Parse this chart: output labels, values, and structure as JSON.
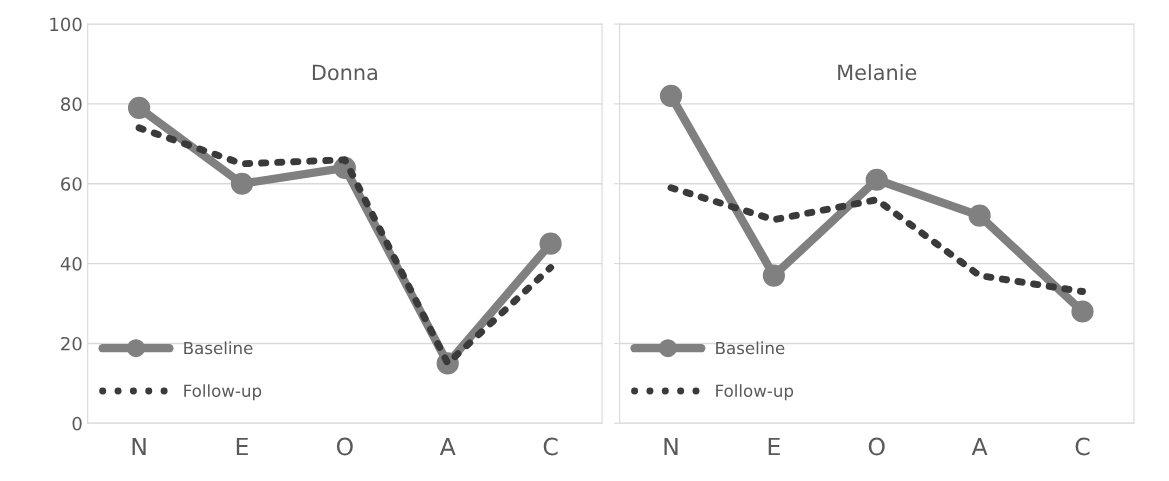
{
  "chart_data": [
    {
      "type": "line",
      "title": "Donna",
      "categories": [
        "N",
        "E",
        "O",
        "A",
        "C"
      ],
      "ylim": [
        0,
        100
      ],
      "yticks": [
        0,
        20,
        40,
        60,
        80,
        100
      ],
      "grid": "y",
      "legend": "bottom left",
      "series": [
        {
          "name": "Baseline",
          "color": "#808080",
          "values": [
            79,
            60,
            64,
            15,
            45
          ],
          "marker": "circle",
          "line_style": "solid"
        },
        {
          "name": "Follow-up",
          "color": "#3a3a3a",
          "values": [
            74,
            65,
            66,
            15,
            39
          ],
          "marker": "none",
          "line_style": "dotted"
        }
      ]
    },
    {
      "type": "line",
      "title": "Melanie",
      "categories": [
        "N",
        "E",
        "O",
        "A",
        "C"
      ],
      "ylim": [
        0,
        100
      ],
      "yticks": [
        0,
        20,
        40,
        60,
        80,
        100
      ],
      "grid": "y",
      "legend": "bottom left",
      "tick_labels": "x",
      "series": [
        {
          "name": "Baseline",
          "color": "#808080",
          "values": [
            82,
            37,
            61,
            52,
            28
          ],
          "marker": "circle",
          "line_style": "solid"
        },
        {
          "name": "Follow-up",
          "color": "#3a3a3a",
          "values": [
            59,
            51,
            56,
            37,
            33
          ],
          "marker": "none",
          "line_style": "dotted"
        }
      ]
    }
  ]
}
